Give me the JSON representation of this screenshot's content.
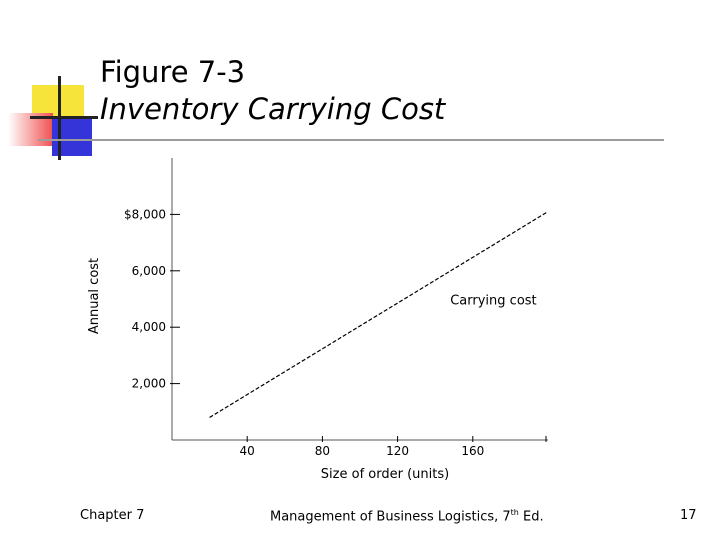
{
  "slide": {
    "title": "Figure 7-3",
    "subtitle": "Inventory Carrying Cost",
    "footer_left": "Chapter 7",
    "footer_center_main": "Management of Business Logistics, 7",
    "footer_center_sup": "th",
    "footer_center_tail": " Ed.",
    "page_number": "17",
    "accent_colors": {
      "yellow": "#f7e43a",
      "red": "#f05050",
      "blue": "#3434d8",
      "dark": "#222222"
    }
  },
  "chart_data": {
    "type": "line",
    "title": "",
    "xlabel": "Size of order (units)",
    "ylabel": "Annual cost",
    "xlim": [
      0,
      200
    ],
    "ylim": [
      0,
      10000
    ],
    "x_ticks": [
      40,
      80,
      120,
      160
    ],
    "x_tick_labels": [
      "40",
      "80",
      "120",
      "160"
    ],
    "y_ticks": [
      2000,
      4000,
      6000,
      8000
    ],
    "y_tick_labels": [
      "2,000",
      "4,000",
      "6,000",
      "8,000"
    ],
    "y_tick_prefix_top": "$",
    "grid": false,
    "series": [
      {
        "name": "Carrying cost",
        "style": "dashed",
        "x": [
          20,
          200
        ],
        "y": [
          800,
          8100
        ]
      }
    ],
    "annotation": {
      "text": "Carrying cost",
      "x": 148,
      "y": 4800
    }
  }
}
